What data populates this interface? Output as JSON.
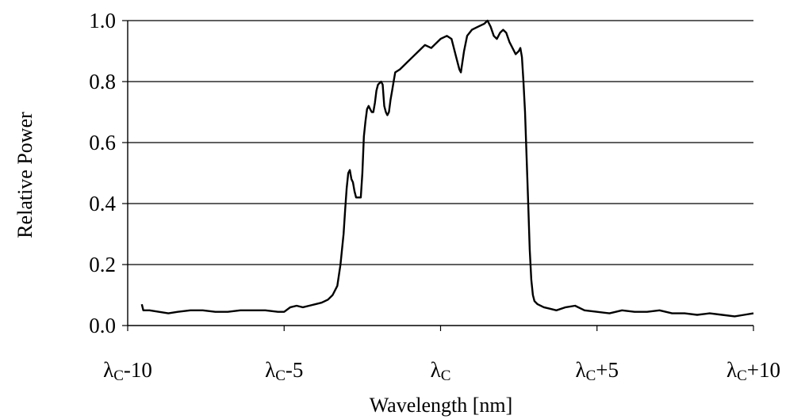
{
  "chart_data": {
    "type": "line",
    "title": "",
    "xlabel": "Wavelength [nm]",
    "ylabel": "Relative Power",
    "xlim": [
      -10,
      10
    ],
    "ylim": [
      0,
      1.0
    ],
    "grid": "horizontal",
    "yticks": [
      {
        "value": 0.0,
        "label": "0.0"
      },
      {
        "value": 0.2,
        "label": "0.2"
      },
      {
        "value": 0.4,
        "label": "0.4"
      },
      {
        "value": 0.6,
        "label": "0.6"
      },
      {
        "value": 0.8,
        "label": "0.8"
      },
      {
        "value": 1.0,
        "label": "1.0"
      }
    ],
    "xticks": [
      {
        "value": -10,
        "base": "λ",
        "sub": "C",
        "suffix": "-10"
      },
      {
        "value": -5,
        "base": "λ",
        "sub": "C",
        "suffix": "-5"
      },
      {
        "value": 0,
        "base": "λ",
        "sub": "C",
        "suffix": ""
      },
      {
        "value": 5,
        "base": "λ",
        "sub": "C",
        "suffix": "+5"
      },
      {
        "value": 10,
        "base": "λ",
        "sub": "C",
        "suffix": "+10"
      }
    ],
    "series": [
      {
        "line_color": "#000000",
        "points": [
          [
            -9.55,
            0.07
          ],
          [
            -9.5,
            0.05
          ],
          [
            -9.3,
            0.05
          ],
          [
            -9.0,
            0.045
          ],
          [
            -8.7,
            0.04
          ],
          [
            -8.4,
            0.045
          ],
          [
            -8.0,
            0.05
          ],
          [
            -7.6,
            0.05
          ],
          [
            -7.2,
            0.045
          ],
          [
            -6.8,
            0.045
          ],
          [
            -6.4,
            0.05
          ],
          [
            -6.0,
            0.05
          ],
          [
            -5.6,
            0.05
          ],
          [
            -5.2,
            0.045
          ],
          [
            -5.0,
            0.045
          ],
          [
            -4.8,
            0.06
          ],
          [
            -4.6,
            0.065
          ],
          [
            -4.4,
            0.06
          ],
          [
            -4.2,
            0.065
          ],
          [
            -4.0,
            0.07
          ],
          [
            -3.8,
            0.075
          ],
          [
            -3.6,
            0.085
          ],
          [
            -3.45,
            0.1
          ],
          [
            -3.3,
            0.13
          ],
          [
            -3.2,
            0.2
          ],
          [
            -3.1,
            0.3
          ],
          [
            -3.05,
            0.38
          ],
          [
            -3.0,
            0.45
          ],
          [
            -2.95,
            0.5
          ],
          [
            -2.9,
            0.51
          ],
          [
            -2.85,
            0.48
          ],
          [
            -2.8,
            0.47
          ],
          [
            -2.75,
            0.44
          ],
          [
            -2.7,
            0.42
          ],
          [
            -2.6,
            0.42
          ],
          [
            -2.55,
            0.42
          ],
          [
            -2.5,
            0.5
          ],
          [
            -2.45,
            0.62
          ],
          [
            -2.4,
            0.67
          ],
          [
            -2.35,
            0.71
          ],
          [
            -2.3,
            0.72
          ],
          [
            -2.25,
            0.71
          ],
          [
            -2.2,
            0.7
          ],
          [
            -2.15,
            0.7
          ],
          [
            -2.1,
            0.73
          ],
          [
            -2.05,
            0.77
          ],
          [
            -2.0,
            0.79
          ],
          [
            -1.9,
            0.8
          ],
          [
            -1.85,
            0.79
          ],
          [
            -1.8,
            0.72
          ],
          [
            -1.75,
            0.7
          ],
          [
            -1.7,
            0.69
          ],
          [
            -1.65,
            0.7
          ],
          [
            -1.6,
            0.74
          ],
          [
            -1.55,
            0.77
          ],
          [
            -1.5,
            0.8
          ],
          [
            -1.45,
            0.83
          ],
          [
            -1.3,
            0.84
          ],
          [
            -1.1,
            0.86
          ],
          [
            -0.9,
            0.88
          ],
          [
            -0.7,
            0.9
          ],
          [
            -0.5,
            0.92
          ],
          [
            -0.3,
            0.91
          ],
          [
            -0.2,
            0.92
          ],
          [
            0.0,
            0.94
          ],
          [
            0.2,
            0.95
          ],
          [
            0.35,
            0.94
          ],
          [
            0.5,
            0.88
          ],
          [
            0.6,
            0.84
          ],
          [
            0.65,
            0.83
          ],
          [
            0.75,
            0.9
          ],
          [
            0.85,
            0.95
          ],
          [
            1.0,
            0.97
          ],
          [
            1.2,
            0.98
          ],
          [
            1.4,
            0.99
          ],
          [
            1.5,
            1.0
          ],
          [
            1.6,
            0.98
          ],
          [
            1.7,
            0.95
          ],
          [
            1.8,
            0.94
          ],
          [
            1.9,
            0.96
          ],
          [
            2.0,
            0.97
          ],
          [
            2.1,
            0.96
          ],
          [
            2.2,
            0.93
          ],
          [
            2.3,
            0.91
          ],
          [
            2.4,
            0.89
          ],
          [
            2.5,
            0.9
          ],
          [
            2.55,
            0.91
          ],
          [
            2.6,
            0.88
          ],
          [
            2.65,
            0.8
          ],
          [
            2.7,
            0.7
          ],
          [
            2.75,
            0.55
          ],
          [
            2.8,
            0.4
          ],
          [
            2.85,
            0.25
          ],
          [
            2.9,
            0.15
          ],
          [
            2.95,
            0.1
          ],
          [
            3.0,
            0.08
          ],
          [
            3.1,
            0.07
          ],
          [
            3.3,
            0.06
          ],
          [
            3.5,
            0.055
          ],
          [
            3.7,
            0.05
          ],
          [
            4.0,
            0.06
          ],
          [
            4.3,
            0.065
          ],
          [
            4.6,
            0.05
          ],
          [
            5.0,
            0.045
          ],
          [
            5.4,
            0.04
          ],
          [
            5.8,
            0.05
          ],
          [
            6.2,
            0.045
          ],
          [
            6.6,
            0.045
          ],
          [
            7.0,
            0.05
          ],
          [
            7.4,
            0.04
          ],
          [
            7.8,
            0.04
          ],
          [
            8.2,
            0.035
          ],
          [
            8.6,
            0.04
          ],
          [
            9.0,
            0.035
          ],
          [
            9.4,
            0.03
          ],
          [
            9.7,
            0.035
          ],
          [
            10.0,
            0.04
          ]
        ]
      }
    ]
  }
}
